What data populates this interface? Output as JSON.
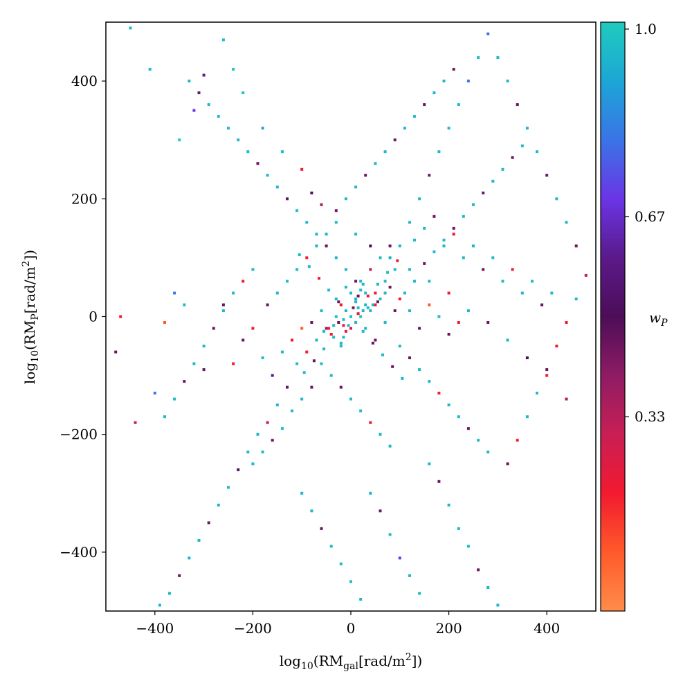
{
  "chart_data": {
    "type": "scatter",
    "xlabel_main": "log",
    "xlabel_sub": "10",
    "xlabel_rest": "(RM",
    "xlabel_sub2": "gal",
    "xlabel_tail": "[rad/m",
    "xlabel_sup": "2",
    "xlabel_end": "])",
    "ylabel_main": "log",
    "ylabel_sub": "10",
    "ylabel_rest": "(RM",
    "ylabel_sub2": "P",
    "ylabel_tail": "[rad/m",
    "ylabel_sup": "2",
    "ylabel_end": "])",
    "xlim": [
      -500,
      500
    ],
    "ylim": [
      -500,
      500
    ],
    "xticks": [
      -400,
      -200,
      0,
      200,
      400
    ],
    "yticks": [
      -400,
      -200,
      0,
      200,
      400
    ],
    "xtick_labels": [
      "−400",
      "−200",
      "0",
      "200",
      "400"
    ],
    "ytick_labels": [
      "−400",
      "−200",
      "0",
      "200",
      "400"
    ],
    "colorbar": {
      "label": "w",
      "label_sub": "P",
      "range": [
        0.0,
        1.0
      ],
      "ticks": [
        0.33,
        0.67,
        1.0
      ],
      "tick_labels": [
        "0.33",
        "0.67",
        "1.0"
      ],
      "colors": [
        "#ff8c4a",
        "#ff5a2a",
        "#f21a30",
        "#c81f54",
        "#8e1c64",
        "#4d0d58",
        "#5a1a8a",
        "#6a35e6",
        "#3a74e6",
        "#1ca6d6",
        "#1fcbbd"
      ]
    },
    "grid": false,
    "points": [
      [
        -450,
        490,
        0.95
      ],
      [
        -410,
        420,
        0.95
      ],
      [
        -350,
        300,
        1.0
      ],
      [
        -320,
        350,
        0.7
      ],
      [
        -300,
        410,
        0.6
      ],
      [
        -260,
        470,
        0.95
      ],
      [
        -240,
        420,
        0.98
      ],
      [
        -220,
        380,
        0.98
      ],
      [
        -180,
        320,
        0.9
      ],
      [
        -140,
        280,
        0.95
      ],
      [
        -100,
        250,
        0.2
      ],
      [
        -80,
        210,
        0.5
      ],
      [
        -60,
        190,
        0.35
      ],
      [
        -30,
        160,
        0.95
      ],
      [
        10,
        140,
        0.95
      ],
      [
        40,
        120,
        0.5
      ],
      [
        80,
        100,
        0.92
      ],
      [
        120,
        80,
        0.95
      ],
      [
        160,
        60,
        0.95
      ],
      [
        200,
        40,
        0.2
      ],
      [
        240,
        10,
        0.95
      ],
      [
        280,
        -10,
        0.45
      ],
      [
        320,
        -40,
        0.95
      ],
      [
        360,
        -70,
        0.5
      ],
      [
        400,
        -100,
        0.2
      ],
      [
        440,
        -140,
        0.35
      ],
      [
        -470,
        0,
        0.2
      ],
      [
        -480,
        -60,
        0.45
      ],
      [
        -440,
        -180,
        0.3
      ],
      [
        -400,
        -130,
        0.8
      ],
      [
        -380,
        -10,
        0.1
      ],
      [
        -360,
        40,
        0.8
      ],
      [
        -340,
        20,
        0.95
      ],
      [
        -300,
        -90,
        0.45
      ],
      [
        -260,
        20,
        0.45
      ],
      [
        -240,
        -80,
        0.2
      ],
      [
        -220,
        -40,
        0.45
      ],
      [
        -200,
        -20,
        0.2
      ],
      [
        -180,
        -70,
        0.95
      ],
      [
        -160,
        -100,
        0.6
      ],
      [
        -140,
        -60,
        0.95
      ],
      [
        -120,
        -40,
        0.2
      ],
      [
        -100,
        -20,
        0.1
      ],
      [
        -80,
        -10,
        0.45
      ],
      [
        -60,
        10,
        0.95
      ],
      [
        -40,
        -30,
        0.2
      ],
      [
        -20,
        -50,
        0.95
      ],
      [
        0,
        -20,
        0.3
      ],
      [
        20,
        0,
        0.98
      ],
      [
        40,
        10,
        0.95
      ],
      [
        60,
        30,
        0.95
      ],
      [
        80,
        50,
        0.45
      ],
      [
        100,
        30,
        0.2
      ],
      [
        120,
        10,
        0.95
      ],
      [
        140,
        -20,
        0.45
      ],
      [
        160,
        20,
        0.1
      ],
      [
        180,
        0,
        0.95
      ],
      [
        200,
        -30,
        0.45
      ],
      [
        220,
        -10,
        0.2
      ],
      [
        -20,
        20,
        0.2
      ],
      [
        0,
        40,
        0.95
      ],
      [
        20,
        60,
        0.95
      ],
      [
        40,
        80,
        0.3
      ],
      [
        60,
        100,
        0.95
      ],
      [
        80,
        120,
        0.45
      ],
      [
        -10,
        10,
        0.95
      ],
      [
        10,
        -10,
        0.95
      ],
      [
        30,
        20,
        0.95
      ],
      [
        50,
        40,
        0.2
      ],
      [
        70,
        60,
        0.95
      ],
      [
        -30,
        0,
        0.95
      ],
      [
        -50,
        -20,
        0.4
      ],
      [
        -70,
        -40,
        0.95
      ],
      [
        -90,
        -60,
        0.2
      ],
      [
        -110,
        -80,
        0.95
      ],
      [
        -130,
        -120,
        0.45
      ],
      [
        -150,
        -150,
        0.95
      ],
      [
        -170,
        -180,
        0.3
      ],
      [
        -190,
        -200,
        0.95
      ],
      [
        -210,
        -230,
        0.95
      ],
      [
        -230,
        -260,
        0.5
      ],
      [
        -250,
        -290,
        0.95
      ],
      [
        -270,
        -320,
        0.95
      ],
      [
        -290,
        -350,
        0.45
      ],
      [
        -310,
        -380,
        0.95
      ],
      [
        -330,
        -410,
        0.95
      ],
      [
        -350,
        -440,
        0.45
      ],
      [
        -370,
        -470,
        0.95
      ],
      [
        -390,
        -490,
        0.95
      ],
      [
        -100,
        -300,
        0.95
      ],
      [
        -80,
        -330,
        0.95
      ],
      [
        -60,
        -360,
        0.45
      ],
      [
        -40,
        -390,
        0.95
      ],
      [
        -20,
        -420,
        0.95
      ],
      [
        0,
        -450,
        0.95
      ],
      [
        20,
        -480,
        0.95
      ],
      [
        40,
        -300,
        0.95
      ],
      [
        60,
        -330,
        0.45
      ],
      [
        80,
        -370,
        0.95
      ],
      [
        100,
        -410,
        0.7
      ],
      [
        120,
        -440,
        0.95
      ],
      [
        140,
        -470,
        0.95
      ],
      [
        160,
        -250,
        0.95
      ],
      [
        180,
        -280,
        0.45
      ],
      [
        200,
        -320,
        0.95
      ],
      [
        220,
        -360,
        0.95
      ],
      [
        240,
        -390,
        0.95
      ],
      [
        260,
        -430,
        0.45
      ],
      [
        280,
        -460,
        0.95
      ],
      [
        300,
        -490,
        0.95
      ],
      [
        320,
        -250,
        0.45
      ],
      [
        340,
        -210,
        0.2
      ],
      [
        360,
        -170,
        0.95
      ],
      [
        380,
        -130,
        0.95
      ],
      [
        400,
        -90,
        0.45
      ],
      [
        420,
        -50,
        0.2
      ],
      [
        440,
        -10,
        0.2
      ],
      [
        460,
        30,
        0.95
      ],
      [
        480,
        70,
        0.3
      ],
      [
        460,
        120,
        0.45
      ],
      [
        440,
        160,
        0.95
      ],
      [
        420,
        200,
        0.95
      ],
      [
        400,
        240,
        0.45
      ],
      [
        380,
        280,
        0.95
      ],
      [
        360,
        320,
        0.95
      ],
      [
        340,
        360,
        0.45
      ],
      [
        320,
        400,
        0.95
      ],
      [
        300,
        440,
        0.95
      ],
      [
        280,
        480,
        0.8
      ],
      [
        260,
        440,
        0.95
      ],
      [
        240,
        400,
        0.8
      ],
      [
        220,
        360,
        0.95
      ],
      [
        200,
        320,
        0.95
      ],
      [
        180,
        280,
        0.95
      ],
      [
        160,
        240,
        0.45
      ],
      [
        140,
        200,
        0.95
      ],
      [
        120,
        160,
        0.95
      ],
      [
        100,
        120,
        0.95
      ],
      [
        90,
        80,
        0.95
      ],
      [
        70,
        40,
        0.95
      ],
      [
        50,
        20,
        0.2
      ],
      [
        30,
        40,
        0.95
      ],
      [
        10,
        60,
        0.45
      ],
      [
        -10,
        80,
        0.95
      ],
      [
        -30,
        100,
        0.95
      ],
      [
        -50,
        120,
        0.45
      ],
      [
        -70,
        140,
        0.95
      ],
      [
        -90,
        160,
        0.95
      ],
      [
        -110,
        180,
        0.95
      ],
      [
        -130,
        200,
        0.45
      ],
      [
        -150,
        220,
        0.95
      ],
      [
        -170,
        240,
        0.95
      ],
      [
        -190,
        260,
        0.45
      ],
      [
        -210,
        280,
        0.95
      ],
      [
        -230,
        300,
        0.95
      ],
      [
        -250,
        320,
        0.95
      ],
      [
        -270,
        340,
        0.95
      ],
      [
        -290,
        360,
        0.95
      ],
      [
        -310,
        380,
        0.45
      ],
      [
        -330,
        400,
        0.95
      ],
      [
        -200,
        80,
        0.95
      ],
      [
        -220,
        60,
        0.2
      ],
      [
        -240,
        40,
        0.95
      ],
      [
        -260,
        10,
        0.95
      ],
      [
        -280,
        -20,
        0.45
      ],
      [
        -300,
        -50,
        0.95
      ],
      [
        -320,
        -80,
        0.95
      ],
      [
        -340,
        -110,
        0.45
      ],
      [
        -360,
        -140,
        0.95
      ],
      [
        -380,
        -170,
        0.95
      ],
      [
        100,
        -50,
        0.95
      ],
      [
        120,
        -70,
        0.45
      ],
      [
        140,
        -90,
        0.95
      ],
      [
        160,
        -110,
        0.95
      ],
      [
        180,
        -130,
        0.2
      ],
      [
        200,
        -150,
        0.95
      ],
      [
        220,
        -170,
        0.95
      ],
      [
        240,
        -190,
        0.45
      ],
      [
        260,
        -210,
        0.95
      ],
      [
        280,
        -230,
        0.95
      ],
      [
        -60,
        -80,
        0.95
      ],
      [
        -40,
        -100,
        0.95
      ],
      [
        -20,
        -120,
        0.45
      ],
      [
        0,
        -140,
        0.95
      ],
      [
        20,
        -160,
        0.95
      ],
      [
        40,
        -180,
        0.2
      ],
      [
        60,
        -200,
        0.95
      ],
      [
        80,
        -220,
        0.95
      ],
      [
        -80,
        -120,
        0.45
      ],
      [
        -100,
        -140,
        0.95
      ],
      [
        -120,
        -160,
        0.95
      ],
      [
        -140,
        -190,
        0.95
      ],
      [
        -160,
        -210,
        0.45
      ],
      [
        -180,
        -230,
        0.95
      ],
      [
        -200,
        -250,
        0.95
      ],
      [
        -30,
        30,
        0.95
      ],
      [
        -10,
        50,
        0.95
      ],
      [
        10,
        30,
        0.95
      ],
      [
        30,
        -20,
        0.95
      ],
      [
        50,
        -40,
        0.45
      ],
      [
        70,
        -10,
        0.95
      ],
      [
        90,
        10,
        0.45
      ],
      [
        110,
        40,
        0.95
      ],
      [
        130,
        60,
        0.95
      ],
      [
        150,
        90,
        0.45
      ],
      [
        170,
        110,
        0.95
      ],
      [
        190,
        130,
        0.95
      ],
      [
        210,
        150,
        0.45
      ],
      [
        230,
        170,
        0.95
      ],
      [
        250,
        190,
        0.95
      ],
      [
        270,
        210,
        0.45
      ],
      [
        290,
        230,
        0.95
      ],
      [
        310,
        250,
        0.95
      ],
      [
        330,
        270,
        0.45
      ],
      [
        350,
        290,
        0.95
      ],
      [
        -15,
        -15,
        0.2
      ],
      [
        15,
        15,
        0.95
      ],
      [
        -25,
        25,
        0.45
      ],
      [
        25,
        -25,
        0.95
      ],
      [
        -35,
        -35,
        0.95
      ],
      [
        35,
        35,
        0.2
      ],
      [
        -45,
        45,
        0.95
      ],
      [
        45,
        -45,
        0.45
      ],
      [
        -55,
        -55,
        0.95
      ],
      [
        55,
        55,
        0.95
      ],
      [
        -65,
        65,
        0.2
      ],
      [
        65,
        -65,
        0.95
      ],
      [
        -75,
        -75,
        0.45
      ],
      [
        75,
        75,
        0.95
      ],
      [
        -85,
        85,
        0.95
      ],
      [
        85,
        -85,
        0.45
      ],
      [
        -95,
        -95,
        0.95
      ],
      [
        95,
        95,
        0.2
      ],
      [
        -105,
        105,
        0.95
      ],
      [
        105,
        -105,
        0.95
      ],
      [
        0,
        0,
        0.95
      ],
      [
        5,
        15,
        0.45
      ],
      [
        -5,
        -15,
        0.95
      ],
      [
        15,
        5,
        0.2
      ],
      [
        -15,
        -5,
        0.95
      ],
      [
        25,
        10,
        0.95
      ],
      [
        -25,
        -10,
        0.45
      ],
      [
        10,
        25,
        0.95
      ],
      [
        -10,
        -25,
        0.2
      ],
      [
        35,
        15,
        0.95
      ],
      [
        -35,
        -15,
        0.95
      ],
      [
        15,
        35,
        0.45
      ],
      [
        -15,
        -35,
        0.95
      ],
      [
        45,
        20,
        0.95
      ],
      [
        -45,
        -20,
        0.2
      ],
      [
        20,
        45,
        0.95
      ],
      [
        -20,
        -45,
        0.95
      ],
      [
        55,
        25,
        0.45
      ],
      [
        -55,
        -25,
        0.95
      ],
      [
        25,
        55,
        0.95
      ],
      [
        150,
        150,
        0.95
      ],
      [
        170,
        170,
        0.45
      ],
      [
        130,
        130,
        0.95
      ],
      [
        190,
        120,
        0.95
      ],
      [
        210,
        140,
        0.2
      ],
      [
        230,
        100,
        0.95
      ],
      [
        250,
        120,
        0.95
      ],
      [
        270,
        80,
        0.45
      ],
      [
        290,
        100,
        0.95
      ],
      [
        310,
        60,
        0.95
      ],
      [
        330,
        80,
        0.2
      ],
      [
        350,
        40,
        0.95
      ],
      [
        370,
        60,
        0.95
      ],
      [
        390,
        20,
        0.45
      ],
      [
        410,
        40,
        0.95
      ],
      [
        -150,
        40,
        0.95
      ],
      [
        -170,
        20,
        0.45
      ],
      [
        -130,
        60,
        0.95
      ],
      [
        -110,
        80,
        0.95
      ],
      [
        -90,
        100,
        0.2
      ],
      [
        -70,
        120,
        0.95
      ],
      [
        -50,
        140,
        0.95
      ],
      [
        -30,
        180,
        0.45
      ],
      [
        -10,
        200,
        0.95
      ],
      [
        10,
        220,
        0.95
      ],
      [
        30,
        240,
        0.45
      ],
      [
        50,
        260,
        0.95
      ],
      [
        70,
        280,
        0.95
      ],
      [
        90,
        300,
        0.45
      ],
      [
        110,
        320,
        0.95
      ],
      [
        130,
        340,
        0.95
      ],
      [
        150,
        360,
        0.45
      ],
      [
        170,
        380,
        0.95
      ],
      [
        190,
        400,
        0.95
      ],
      [
        210,
        420,
        0.45
      ]
    ]
  }
}
